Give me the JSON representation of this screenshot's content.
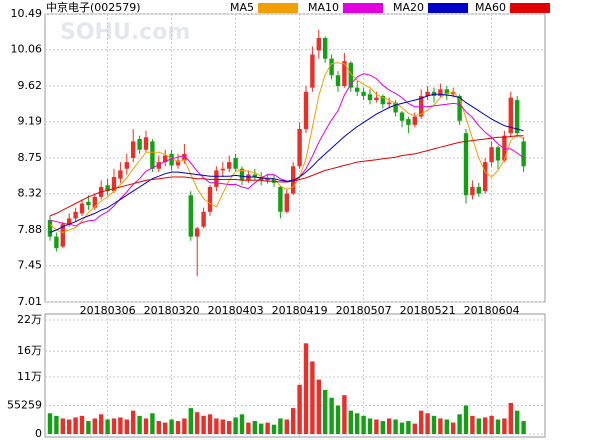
{
  "chart_data": [
    {
      "type": "candlestick",
      "title": "中京电子(002579)",
      "watermark": "SOHU.com",
      "categories": [
        null,
        null,
        null,
        null,
        null,
        null,
        null,
        null,
        null,
        "20180306",
        null,
        null,
        null,
        null,
        null,
        null,
        null,
        null,
        null,
        "20180320",
        null,
        null,
        null,
        null,
        null,
        null,
        null,
        null,
        null,
        "20180403",
        null,
        null,
        null,
        null,
        null,
        null,
        null,
        null,
        null,
        "20180419",
        null,
        null,
        null,
        null,
        null,
        null,
        null,
        null,
        null,
        "20180507",
        null,
        null,
        null,
        null,
        null,
        null,
        null,
        null,
        null,
        "20180521",
        null,
        null,
        null,
        null,
        null,
        null,
        null,
        null,
        null,
        "20180604",
        null,
        null,
        null,
        null,
        null
      ],
      "open": [
        8.0,
        7.8,
        7.68,
        7.95,
        8.02,
        8.08,
        8.22,
        8.15,
        8.28,
        8.42,
        8.35,
        8.5,
        8.62,
        8.75,
        8.98,
        8.85,
        8.95,
        8.62,
        8.7,
        8.8,
        8.66,
        8.72,
        8.3,
        7.8,
        7.92,
        8.1,
        8.4,
        8.6,
        8.62,
        8.75,
        8.62,
        8.48,
        8.55,
        8.52,
        8.48,
        8.5,
        8.4,
        8.1,
        8.32,
        8.65,
        9.1,
        9.6,
        10.05,
        10.2,
        9.95,
        9.75,
        9.62,
        9.9,
        9.6,
        9.55,
        9.52,
        9.45,
        9.5,
        9.4,
        9.42,
        9.3,
        9.22,
        9.15,
        9.25,
        9.5,
        9.55,
        9.5,
        9.58,
        9.52,
        9.5,
        9.05,
        8.3,
        8.4,
        8.35,
        8.7,
        8.88,
        8.72,
        9.05,
        9.45,
        8.95
      ],
      "high": [
        8.05,
        7.85,
        7.98,
        8.08,
        8.15,
        8.25,
        8.3,
        8.32,
        8.48,
        8.5,
        8.62,
        8.7,
        8.8,
        9.1,
        9.02,
        9.08,
        8.98,
        8.78,
        8.85,
        8.85,
        8.8,
        8.92,
        8.35,
        7.92,
        8.15,
        8.42,
        8.65,
        8.7,
        8.78,
        8.8,
        8.65,
        8.6,
        8.62,
        8.58,
        8.56,
        8.55,
        8.42,
        8.38,
        8.7,
        9.18,
        9.62,
        10.1,
        10.3,
        10.22,
        10.0,
        9.8,
        10.02,
        9.92,
        9.68,
        9.6,
        9.58,
        9.55,
        9.52,
        9.48,
        9.45,
        9.32,
        9.25,
        9.3,
        9.58,
        9.62,
        9.6,
        9.65,
        9.62,
        9.6,
        9.52,
        9.1,
        8.48,
        8.45,
        8.75,
        8.95,
        8.9,
        9.08,
        9.55,
        9.5,
        9.0
      ],
      "low": [
        7.75,
        7.62,
        7.66,
        7.92,
        7.98,
        8.05,
        8.12,
        8.12,
        8.25,
        8.3,
        8.33,
        8.45,
        8.55,
        8.7,
        8.8,
        8.82,
        8.58,
        8.58,
        8.65,
        8.6,
        8.62,
        8.68,
        7.75,
        7.32,
        7.9,
        8.05,
        8.35,
        8.52,
        8.58,
        8.58,
        8.42,
        8.45,
        8.48,
        8.42,
        8.44,
        8.4,
        8.02,
        8.08,
        8.3,
        8.62,
        9.05,
        9.55,
        9.95,
        9.9,
        9.7,
        9.55,
        9.6,
        9.55,
        9.5,
        9.45,
        9.4,
        9.42,
        9.35,
        9.35,
        9.25,
        9.12,
        9.05,
        9.12,
        9.22,
        9.45,
        9.42,
        9.48,
        9.45,
        9.48,
        9.15,
        8.2,
        8.25,
        8.28,
        8.32,
        8.65,
        8.62,
        8.7,
        9.0,
        9.0,
        8.58
      ],
      "close": [
        7.8,
        7.66,
        7.95,
        8.02,
        8.1,
        8.2,
        8.18,
        8.28,
        8.4,
        8.35,
        8.52,
        8.6,
        8.7,
        8.95,
        8.85,
        9.0,
        8.62,
        8.7,
        8.78,
        8.66,
        8.72,
        8.8,
        7.8,
        7.9,
        8.1,
        8.4,
        8.6,
        8.62,
        8.7,
        8.62,
        8.48,
        8.55,
        8.52,
        8.48,
        8.5,
        8.45,
        8.1,
        8.32,
        8.65,
        9.1,
        9.55,
        10.0,
        10.2,
        9.95,
        9.75,
        9.62,
        9.92,
        9.6,
        9.55,
        9.5,
        9.45,
        9.48,
        9.4,
        9.42,
        9.3,
        9.2,
        9.15,
        9.25,
        9.5,
        9.55,
        9.5,
        9.58,
        9.52,
        9.55,
        9.2,
        8.3,
        8.4,
        8.32,
        8.7,
        8.88,
        8.72,
        9.02,
        9.48,
        9.05,
        8.65
      ],
      "up_color": "#e8302a",
      "down_color": "#14a014",
      "series": [
        {
          "name": "MA5",
          "color": "#f0a000",
          "values": [
            7.95,
            7.88,
            7.85,
            7.88,
            7.91,
            7.99,
            8.09,
            8.16,
            8.23,
            8.28,
            8.35,
            8.43,
            8.51,
            8.62,
            8.72,
            8.82,
            8.82,
            8.82,
            8.79,
            8.75,
            8.7,
            8.73,
            8.55,
            8.38,
            8.26,
            8.2,
            8.16,
            8.32,
            8.48,
            8.59,
            8.6,
            8.59,
            8.57,
            8.53,
            8.51,
            8.5,
            8.41,
            8.37,
            8.4,
            8.52,
            8.74,
            9.12,
            9.5,
            9.76,
            9.89,
            9.9,
            9.89,
            9.77,
            9.69,
            9.64,
            9.6,
            9.52,
            9.48,
            9.45,
            9.41,
            9.36,
            9.29,
            9.26,
            9.28,
            9.33,
            9.39,
            9.48,
            9.53,
            9.54,
            9.47,
            9.23,
            8.99,
            8.75,
            8.58,
            8.52,
            8.6,
            8.73,
            8.96,
            9.03,
            8.98
          ]
        },
        {
          "name": "MA10",
          "color": "#e000e0",
          "values": [
            8.0,
            7.98,
            7.96,
            7.95,
            7.93,
            7.97,
            7.99,
            8.0,
            8.06,
            8.1,
            8.17,
            8.26,
            8.34,
            8.43,
            8.5,
            8.59,
            8.63,
            8.67,
            8.71,
            8.74,
            8.76,
            8.78,
            8.69,
            8.59,
            8.51,
            8.45,
            8.45,
            8.44,
            8.43,
            8.43,
            8.4,
            8.38,
            8.45,
            8.51,
            8.55,
            8.55,
            8.5,
            8.47,
            8.47,
            8.52,
            8.62,
            8.77,
            8.94,
            9.08,
            9.21,
            9.32,
            9.51,
            9.64,
            9.73,
            9.77,
            9.75,
            9.71,
            9.63,
            9.57,
            9.53,
            9.48,
            9.41,
            9.37,
            9.37,
            9.37,
            9.38,
            9.39,
            9.4,
            9.41,
            9.4,
            9.31,
            9.24,
            9.14,
            9.06,
            9.0,
            8.92,
            8.86,
            8.86,
            8.81,
            8.75
          ]
        },
        {
          "name": "MA20",
          "color": "#0000c8",
          "values": [
            7.85,
            7.88,
            7.92,
            7.95,
            7.98,
            8.02,
            8.05,
            8.08,
            8.12,
            8.15,
            8.2,
            8.25,
            8.3,
            8.35,
            8.4,
            8.45,
            8.5,
            8.53,
            8.56,
            8.58,
            8.58,
            8.57,
            8.56,
            8.55,
            8.54,
            8.53,
            8.53,
            8.53,
            8.53,
            8.54,
            8.53,
            8.52,
            8.52,
            8.51,
            8.5,
            8.5,
            8.48,
            8.47,
            8.48,
            8.52,
            8.58,
            8.65,
            8.73,
            8.8,
            8.87,
            8.94,
            9.01,
            9.07,
            9.13,
            9.18,
            9.23,
            9.28,
            9.32,
            9.36,
            9.39,
            9.41,
            9.43,
            9.45,
            9.47,
            9.5,
            9.52,
            9.52,
            9.51,
            9.5,
            9.48,
            9.42,
            9.37,
            9.32,
            9.27,
            9.22,
            9.18,
            9.14,
            9.12,
            9.1,
            9.08
          ]
        },
        {
          "name": "MA60",
          "color": "#e00000",
          "values": [
            8.05,
            8.08,
            8.12,
            8.16,
            8.2,
            8.24,
            8.28,
            8.31,
            8.34,
            8.36,
            8.38,
            8.4,
            8.42,
            8.44,
            8.46,
            8.48,
            8.49,
            8.5,
            8.51,
            8.52,
            8.52,
            8.52,
            8.51,
            8.5,
            8.5,
            8.49,
            8.49,
            8.49,
            8.49,
            8.49,
            8.48,
            8.48,
            8.48,
            8.48,
            8.47,
            8.47,
            8.46,
            8.46,
            8.47,
            8.49,
            8.51,
            8.54,
            8.57,
            8.6,
            8.62,
            8.64,
            8.66,
            8.68,
            8.7,
            8.71,
            8.72,
            8.73,
            8.74,
            8.75,
            8.76,
            8.78,
            8.79,
            8.8,
            8.82,
            8.84,
            8.86,
            8.88,
            8.9,
            8.92,
            8.94,
            8.95,
            8.96,
            8.97,
            8.98,
            8.99,
            9.0,
            9.0,
            9.01,
            9.02,
            9.02
          ]
        }
      ],
      "ylim": [
        7.01,
        10.49
      ],
      "yticks": [
        7.01,
        7.45,
        7.88,
        8.32,
        8.75,
        9.19,
        9.62,
        10.06,
        10.49
      ],
      "grid": true
    },
    {
      "type": "bar",
      "values": [
        40000,
        35000,
        30000,
        28000,
        32000,
        35000,
        25000,
        30000,
        38000,
        28000,
        30000,
        32000,
        28000,
        45000,
        35000,
        30000,
        40000,
        25000,
        22000,
        28000,
        25000,
        30000,
        50000,
        42000,
        35000,
        38000,
        30000,
        28000,
        25000,
        32000,
        38000,
        22000,
        25000,
        20000,
        22000,
        18000,
        30000,
        28000,
        50000,
        95000,
        175000,
        140000,
        105000,
        85000,
        70000,
        55000,
        75000,
        45000,
        40000,
        35000,
        30000,
        28000,
        25000,
        30000,
        28000,
        22000,
        25000,
        20000,
        45000,
        40000,
        35000,
        30000,
        28000,
        22000,
        38000,
        55000,
        35000,
        30000,
        32000,
        35000,
        28000,
        30000,
        60000,
        45000,
        25000
      ],
      "ylim": [
        0,
        220000
      ],
      "yticks": [
        0,
        55259,
        {
          "value": 110000,
          "label": "11万"
        },
        {
          "value": 160000,
          "label": "16万"
        },
        {
          "value": 220000,
          "label": "22万"
        }
      ],
      "grid": true
    }
  ]
}
